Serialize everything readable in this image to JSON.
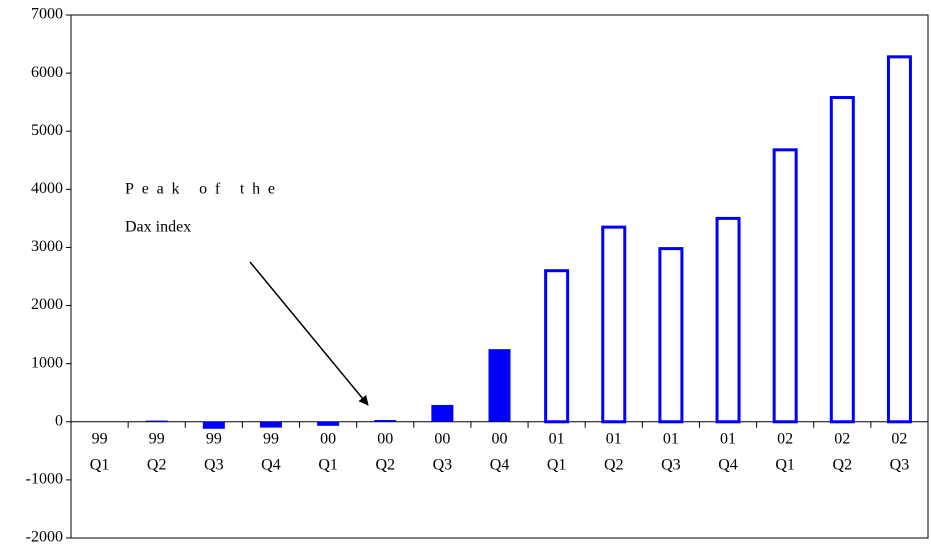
{
  "chart_data": {
    "type": "bar",
    "categories": [
      [
        "99",
        "Q1"
      ],
      [
        "99",
        "Q2"
      ],
      [
        "99",
        "Q3"
      ],
      [
        "99",
        "Q4"
      ],
      [
        "00",
        "Q1"
      ],
      [
        "00",
        "Q2"
      ],
      [
        "00",
        "Q3"
      ],
      [
        "00",
        "Q4"
      ],
      [
        "01",
        "Q1"
      ],
      [
        "01",
        "Q2"
      ],
      [
        "01",
        "Q3"
      ],
      [
        "01",
        "Q4"
      ],
      [
        "02",
        "Q1"
      ],
      [
        "02",
        "Q2"
      ],
      [
        "02",
        "Q3"
      ]
    ],
    "values": [
      0,
      20,
      -120,
      -100,
      -70,
      30,
      290,
      1250,
      2600,
      3350,
      2980,
      3500,
      4680,
      5580,
      6280
    ],
    "filled": [
      true,
      true,
      true,
      true,
      true,
      true,
      true,
      true,
      false,
      false,
      false,
      false,
      false,
      false,
      false
    ],
    "color": "#0000ff",
    "ylim": [
      -2000,
      7000
    ],
    "yticks": [
      -2000,
      -1000,
      0,
      1000,
      2000,
      3000,
      4000,
      5000,
      6000,
      7000
    ],
    "annotation": [
      "Peak of the",
      "Dax index"
    ]
  }
}
